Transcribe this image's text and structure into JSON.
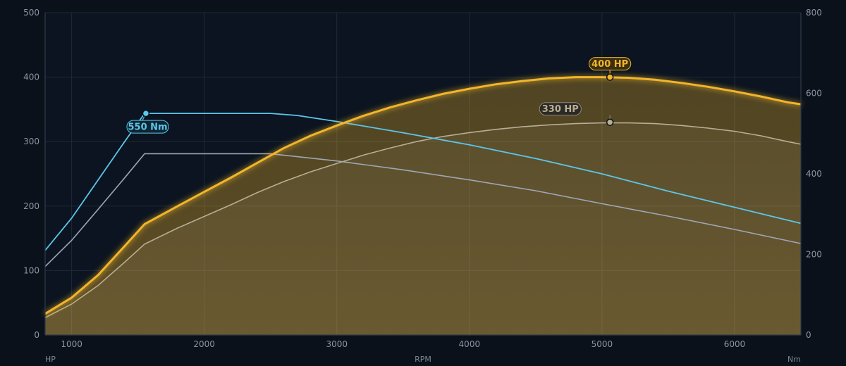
{
  "chart_data": {
    "type": "line",
    "title": "",
    "xlabel": "RPM",
    "ylabel_left": "HP",
    "ylabel_right": "Nm",
    "xlim": [
      800,
      6500
    ],
    "ylim_left": [
      0,
      500
    ],
    "ylim_right": [
      0,
      800
    ],
    "x_ticks": [
      1000,
      2000,
      3000,
      4000,
      5000,
      6000
    ],
    "y_ticks_left": [
      0,
      100,
      200,
      300,
      400,
      500
    ],
    "y_ticks_right": [
      0,
      200,
      400,
      600,
      800
    ],
    "grid": true,
    "colors": {
      "background": "#0a111b",
      "grid": "#1f2a38",
      "tuned_hp": "#f2b52a",
      "stock_hp": "#b9ad93",
      "tuned_torque": "#5cc6ea",
      "stock_torque": "#9ea6b8"
    },
    "series": [
      {
        "key": "tuned_hp",
        "axis": "left",
        "x": [
          800,
          1000,
          1200,
          1400,
          1550,
          1800,
          2000,
          2200,
          2400,
          2600,
          2800,
          3000,
          3200,
          3400,
          3600,
          3800,
          4000,
          4200,
          4400,
          4600,
          4800,
          5000,
          5200,
          5400,
          5600,
          5800,
          6000,
          6200,
          6400,
          6500
        ],
        "values": [
          33,
          58,
          93,
          138,
          172,
          200,
          222,
          244,
          267,
          290,
          309,
          325,
          340,
          353,
          364,
          374,
          382,
          389,
          394,
          398,
          400,
          400,
          399,
          396,
          391,
          385,
          378,
          370,
          361,
          358
        ]
      },
      {
        "key": "stock_hp",
        "axis": "left",
        "x": [
          800,
          1000,
          1200,
          1400,
          1550,
          1800,
          2000,
          2200,
          2400,
          2600,
          2800,
          3000,
          3200,
          3400,
          3600,
          3800,
          4000,
          4200,
          4400,
          4600,
          4800,
          5000,
          5200,
          5400,
          5600,
          5800,
          6000,
          6200,
          6400,
          6500
        ],
        "values": [
          27,
          48,
          77,
          113,
          141,
          166,
          184,
          202,
          221,
          238,
          253,
          266,
          279,
          290,
          300,
          308,
          314,
          319,
          323,
          326,
          328,
          329,
          329,
          328,
          325,
          321,
          316,
          309,
          300,
          296
        ]
      },
      {
        "key": "tuned_torque",
        "axis": "right",
        "x": [
          800,
          1000,
          1200,
          1400,
          1550,
          2000,
          2500,
          2700,
          3000,
          3500,
          4000,
          4500,
          5000,
          5500,
          6000,
          6500
        ],
        "values": [
          210,
          290,
          385,
          480,
          550,
          550,
          550,
          545,
          530,
          502,
          472,
          438,
          400,
          357,
          317,
          277
        ]
      },
      {
        "key": "stock_torque",
        "axis": "right",
        "x": [
          800,
          1000,
          1200,
          1400,
          1550,
          2000,
          2500,
          3000,
          3500,
          4000,
          4500,
          5000,
          5500,
          6000,
          6500
        ],
        "values": [
          170,
          235,
          312,
          390,
          450,
          450,
          450,
          432,
          410,
          385,
          358,
          326,
          295,
          262,
          227
        ]
      }
    ],
    "annotations": [
      {
        "series": "tuned_hp",
        "x": 5060,
        "value": 400,
        "text": "400 HP"
      },
      {
        "series": "stock_hp",
        "x": 5060,
        "value": 330,
        "text": "330 HP"
      },
      {
        "series": "tuned_torque",
        "x": 1560,
        "value": 550,
        "text": "550 Nm"
      }
    ]
  }
}
